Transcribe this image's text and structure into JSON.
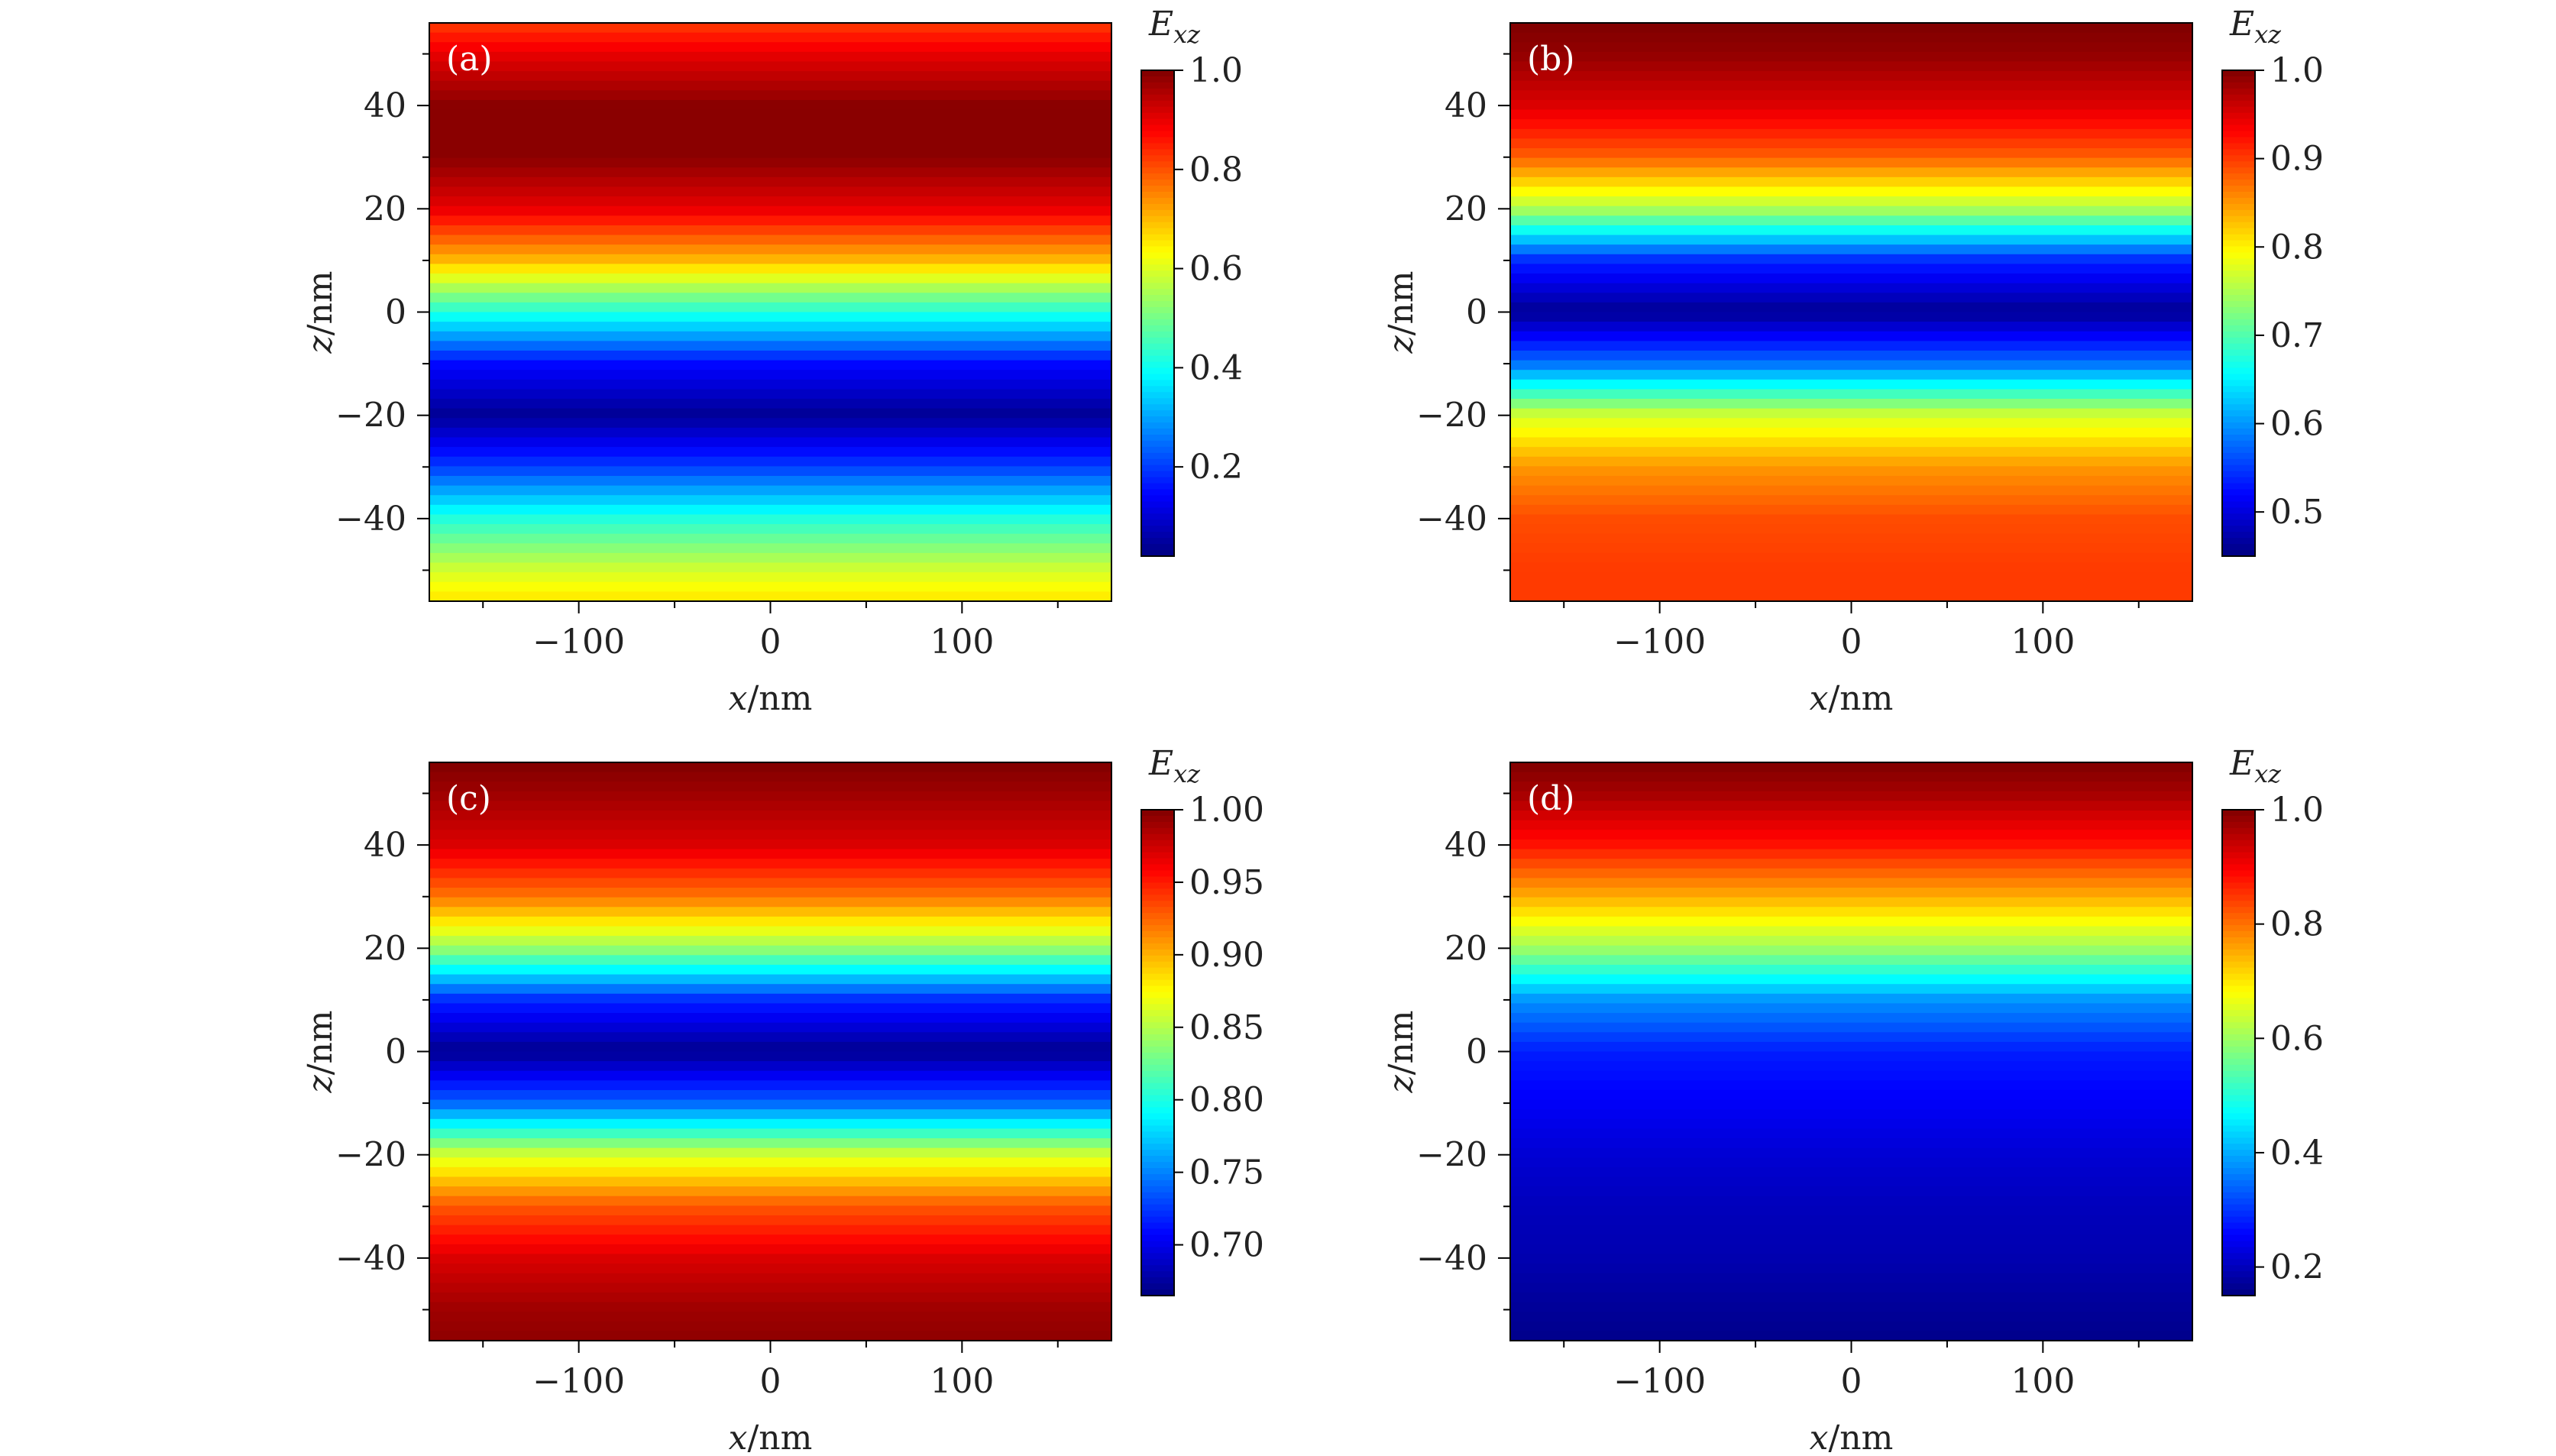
{
  "chart_data": [
    {
      "type": "heatmap",
      "panel_label": "(a)",
      "xlabel": "x/nm",
      "ylabel": "z/nm",
      "xlim": [
        -178,
        178
      ],
      "ylim": [
        -56,
        56
      ],
      "xticks": [
        -100,
        0,
        100
      ],
      "yticks": [
        -40,
        -20,
        0,
        20,
        40
      ],
      "colorbar": {
        "title": "Exz",
        "range": [
          0.02,
          1.0
        ],
        "ticks": [
          0.2,
          0.4,
          0.6,
          0.8,
          1.0
        ],
        "tick_labels": [
          "0.2",
          "0.4",
          "0.6",
          "0.8",
          "1.0"
        ]
      },
      "profile_z": [
        -56,
        -50,
        -40,
        -30,
        -20,
        -10,
        0,
        10,
        20,
        30,
        40,
        50,
        56
      ],
      "profile_value": [
        0.66,
        0.59,
        0.42,
        0.2,
        0.04,
        0.15,
        0.42,
        0.7,
        0.9,
        0.99,
        0.99,
        0.9,
        0.82
      ]
    },
    {
      "type": "heatmap",
      "panel_label": "(b)",
      "xlabel": "x/nm",
      "ylabel": "z/nm",
      "xlim": [
        -178,
        178
      ],
      "ylim": [
        -56,
        56
      ],
      "xticks": [
        -100,
        0,
        100
      ],
      "yticks": [
        -40,
        -20,
        0,
        20,
        40
      ],
      "colorbar": {
        "title": "Exz",
        "range": [
          0.45,
          1.0
        ],
        "ticks": [
          0.5,
          0.6,
          0.7,
          0.8,
          0.9,
          1.0
        ],
        "tick_labels": [
          "0.5",
          "0.6",
          "0.7",
          "0.8",
          "0.9",
          "1.0"
        ]
      },
      "profile_z": [
        -56,
        -50,
        -40,
        -30,
        -20,
        -10,
        0,
        10,
        20,
        30,
        40,
        50,
        56
      ],
      "profile_value": [
        0.9,
        0.9,
        0.89,
        0.85,
        0.77,
        0.58,
        0.46,
        0.54,
        0.75,
        0.88,
        0.95,
        0.99,
        1.0
      ]
    },
    {
      "type": "heatmap",
      "panel_label": "(c)",
      "xlabel": "x/nm",
      "ylabel": "z/nm",
      "xlim": [
        -178,
        178
      ],
      "ylim": [
        -56,
        56
      ],
      "xticks": [
        -100,
        0,
        100
      ],
      "yticks": [
        -40,
        -20,
        0,
        20,
        40
      ],
      "colorbar": {
        "title": "Exz",
        "range": [
          0.665,
          1.0
        ],
        "ticks": [
          0.7,
          0.75,
          0.8,
          0.85,
          0.9,
          0.95,
          1.0
        ],
        "tick_labels": [
          "0.70",
          "0.75",
          "0.80",
          "0.85",
          "0.90",
          "0.95",
          "1.00"
        ]
      },
      "profile_z": [
        -56,
        -50,
        -40,
        -30,
        -20,
        -10,
        0,
        10,
        20,
        30,
        40,
        50,
        56
      ],
      "profile_value": [
        0.995,
        0.99,
        0.97,
        0.93,
        0.86,
        0.74,
        0.67,
        0.72,
        0.84,
        0.92,
        0.97,
        0.99,
        1.0
      ]
    },
    {
      "type": "heatmap",
      "panel_label": "(d)",
      "xlabel": "x/nm",
      "ylabel": "z/nm",
      "xlim": [
        -178,
        178
      ],
      "ylim": [
        -56,
        56
      ],
      "xticks": [
        -100,
        0,
        100
      ],
      "yticks": [
        -40,
        -20,
        0,
        20,
        40
      ],
      "colorbar": {
        "title": "Exz",
        "range": [
          0.15,
          1.0
        ],
        "ticks": [
          0.2,
          0.4,
          0.6,
          0.8,
          1.0
        ],
        "tick_labels": [
          "0.2",
          "0.4",
          "0.6",
          "0.8",
          "1.0"
        ]
      },
      "profile_z": [
        -56,
        -50,
        -40,
        -30,
        -20,
        -10,
        0,
        10,
        20,
        30,
        40,
        50,
        56
      ],
      "profile_value": [
        0.16,
        0.17,
        0.19,
        0.2,
        0.22,
        0.25,
        0.28,
        0.38,
        0.6,
        0.75,
        0.88,
        0.97,
        1.0
      ]
    }
  ]
}
